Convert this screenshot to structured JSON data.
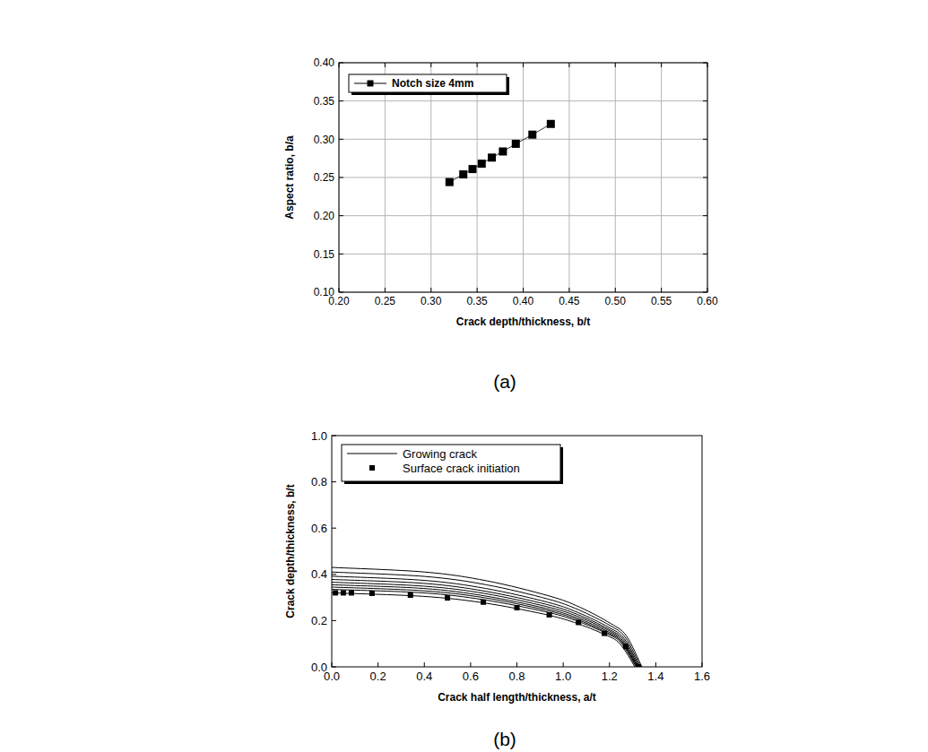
{
  "chart_data": [
    {
      "type": "line",
      "xlabel": "Crack depth/thickness, b/t",
      "ylabel": "Aspect ratio, b/a",
      "annotation": "(a)",
      "xlim": [
        0.2,
        0.6
      ],
      "ylim": [
        0.1,
        0.4
      ],
      "xticks": [
        {
          "value": 0.2,
          "label": "0.20"
        },
        0.25,
        {
          "value": 0.3,
          "label": "0.30"
        },
        0.35,
        {
          "value": 0.4,
          "label": "0.40"
        },
        0.45,
        {
          "value": 0.5,
          "label": "0.50"
        },
        0.55,
        {
          "value": 0.6,
          "label": "0.60"
        }
      ],
      "yticks": [
        {
          "value": 0.1,
          "label": "0.10"
        },
        0.15,
        {
          "value": 0.2,
          "label": "0.20"
        },
        0.25,
        {
          "value": 0.3,
          "label": "0.30"
        },
        0.35,
        {
          "value": 0.4,
          "label": "0.40"
        }
      ],
      "grid": true,
      "legend": "top-left",
      "series": [
        {
          "name": "Notch size 4mm",
          "color": "#000000",
          "marker": "square",
          "line_style": "solid",
          "x": [
            0.32,
            0.335,
            0.345,
            0.355,
            0.366,
            0.378,
            0.392,
            0.41,
            0.43
          ],
          "values": [
            0.244,
            0.254,
            0.261,
            0.268,
            0.276,
            0.284,
            0.294,
            0.306,
            0.32
          ]
        }
      ]
    },
    {
      "type": "line",
      "xlabel": "Crack half length/thickness, a/t",
      "ylabel": "Crack depth/thickness, b/t",
      "annotation": "(b)",
      "xlim": [
        0,
        1.6
      ],
      "ylim": [
        0,
        1
      ],
      "xticks": [
        {
          "value": 0,
          "label": "0.0"
        },
        0.2,
        0.4,
        0.6,
        0.8,
        {
          "value": 1,
          "label": "1.0"
        },
        1.2,
        1.4,
        1.6
      ],
      "yticks": [
        {
          "value": 0,
          "label": "0.0"
        },
        0.2,
        0.4,
        0.6,
        0.8,
        {
          "value": 1,
          "label": "1.0"
        }
      ],
      "grid": false,
      "legend": "top-left",
      "series": [
        {
          "name": "Growing crack",
          "color": "#000000",
          "marker": "none",
          "line_style": "solid",
          "x": [
            0,
            0.393,
            0.655,
            0.917,
            1.048,
            1.179,
            1.245,
            1.31,
            null,
            0,
            0.395,
            0.658,
            0.921,
            1.052,
            1.184,
            1.249,
            1.315,
            null,
            0,
            0.395,
            0.659,
            0.923,
            1.054,
            1.186,
            1.252,
            1.318,
            null,
            0,
            0.396,
            0.66,
            0.924,
            1.056,
            1.188,
            1.254,
            1.32,
            null,
            0,
            0.397,
            0.662,
            0.926,
            1.058,
            1.191,
            1.257,
            1.323,
            null,
            0,
            0.398,
            0.663,
            0.928,
            1.061,
            1.193,
            1.26,
            1.326,
            null,
            0,
            0.399,
            0.665,
            0.931,
            1.064,
            1.197,
            1.264,
            1.33,
            null,
            0,
            0.401,
            0.668,
            0.935,
            1.068,
            1.202,
            1.268,
            1.335,
            null,
            0,
            0.402,
            0.67,
            0.938,
            1.072,
            1.206,
            1.273,
            1.34
          ],
          "values": [
            0.32,
            0.305,
            0.277,
            0.228,
            0.192,
            0.14,
            0.1,
            0,
            null,
            0.335,
            0.32,
            0.29,
            0.239,
            0.201,
            0.146,
            0.105,
            0,
            null,
            0.345,
            0.329,
            0.299,
            0.246,
            0.207,
            0.15,
            0.108,
            0,
            null,
            0.355,
            0.339,
            0.307,
            0.253,
            0.213,
            0.155,
            0.111,
            0,
            null,
            0.366,
            0.349,
            0.317,
            0.261,
            0.22,
            0.16,
            0.114,
            0,
            null,
            0.378,
            0.361,
            0.327,
            0.27,
            0.227,
            0.165,
            0.118,
            0,
            null,
            0.392,
            0.374,
            0.339,
            0.28,
            0.235,
            0.171,
            0.122,
            0,
            null,
            0.41,
            0.391,
            0.355,
            0.293,
            0.246,
            0.179,
            0.128,
            0,
            null,
            0.43,
            0.41,
            0.372,
            0.307,
            0.258,
            0.187,
            0.134,
            0
          ]
        },
        {
          "name": "Surface crack initiation",
          "color": "#000000",
          "marker": "square",
          "line_style": "none",
          "x": [
            0.016,
            0.05,
            0.085,
            0.174,
            0.34,
            0.5,
            0.655,
            0.8,
            0.94,
            1.066,
            1.178,
            1.27,
            1.325
          ],
          "values": [
            0.32,
            0.32,
            0.32,
            0.318,
            0.31,
            0.298,
            0.28,
            0.256,
            0.225,
            0.192,
            0.145,
            0.088,
            0
          ]
        }
      ]
    }
  ]
}
